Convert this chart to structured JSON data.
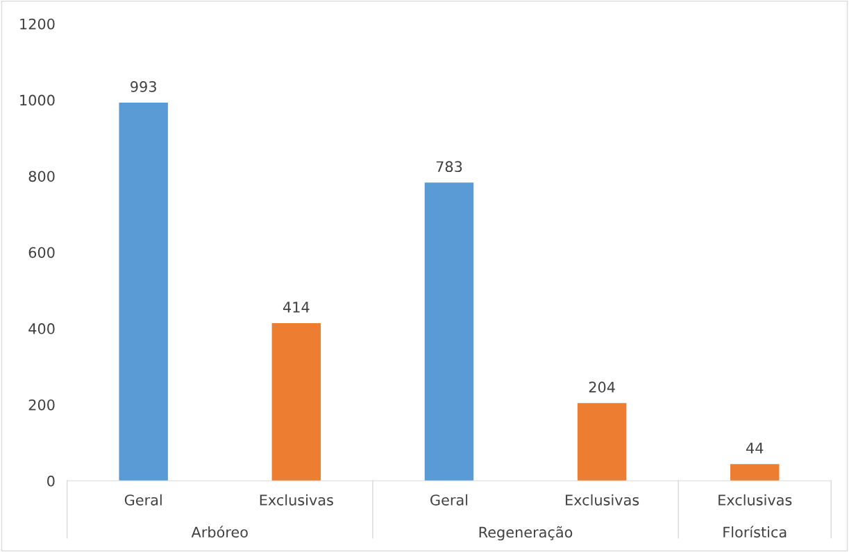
{
  "chart_data": {
    "type": "bar",
    "categories": [
      "Geral",
      "Exclusivas",
      "Geral",
      "Exclusivas",
      "Exclusivas"
    ],
    "values": [
      993,
      414,
      783,
      204,
      44
    ],
    "colors": [
      "#5b9bd5",
      "#ed7d31",
      "#5b9bd5",
      "#ed7d31",
      "#ed7d31"
    ],
    "annotations": [
      "Arbóreo",
      "Regeneração",
      "Florística"
    ],
    "ylim": [
      0,
      1200
    ],
    "yticks": [
      0,
      200,
      400,
      600,
      800,
      1000,
      1200
    ],
    "data_labels": true,
    "grid": false,
    "legend": false
  }
}
